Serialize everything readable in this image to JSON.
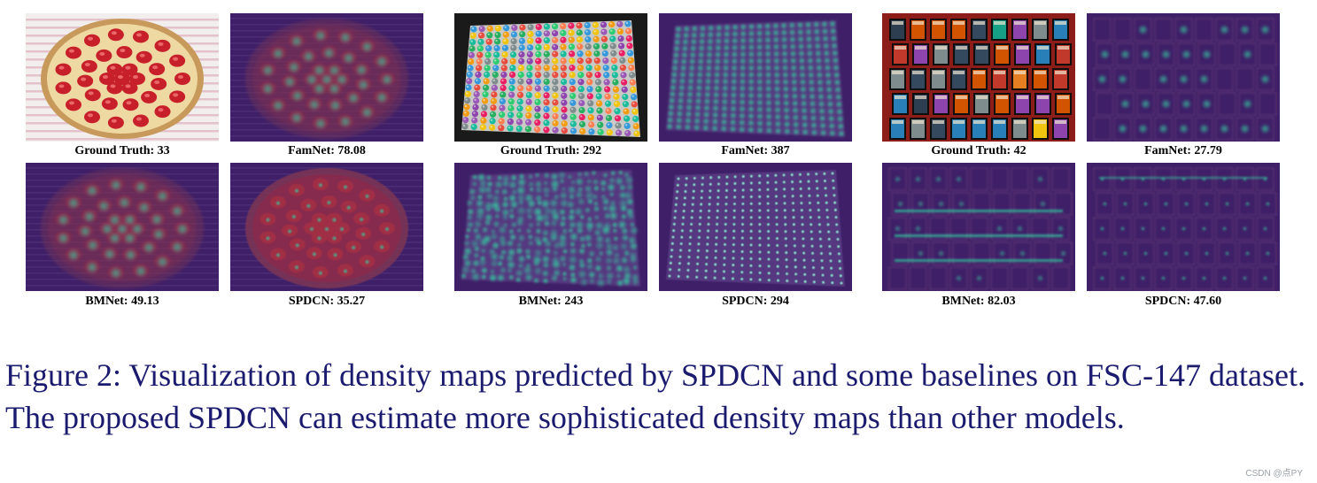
{
  "figure": {
    "groups": [
      {
        "subject": "strawberry tart",
        "panels": [
          {
            "label": "Ground Truth: 33",
            "kind": "photo-tart"
          },
          {
            "label": "FamNet: 78.08",
            "kind": "density-tart-blur"
          },
          {
            "label": "BMNet: 49.13",
            "kind": "density-tart-medium"
          },
          {
            "label": "SPDCN: 35.27",
            "kind": "density-tart-sharp"
          }
        ]
      },
      {
        "subject": "marker tray",
        "panels": [
          {
            "label": "Ground Truth: 292",
            "kind": "photo-markers"
          },
          {
            "label": "FamNet: 387",
            "kind": "density-markers-grid"
          },
          {
            "label": "BMNet: 243",
            "kind": "density-markers-noisy"
          },
          {
            "label": "SPDCN: 294",
            "kind": "density-markers-points"
          }
        ]
      },
      {
        "subject": "comic books",
        "panels": [
          {
            "label": "Ground Truth: 42",
            "kind": "photo-comics"
          },
          {
            "label": "FamNet: 27.79",
            "kind": "density-comics-sparse"
          },
          {
            "label": "BMNet: 82.03",
            "kind": "density-comics-lines"
          },
          {
            "label": "SPDCN: 47.60",
            "kind": "density-comics-points"
          }
        ]
      }
    ],
    "caption": "Figure 2: Visualization of density maps predicted by SPDCN and some baselines on FSC-147 dataset. The proposed SPDCN can estimate more sophisticated density maps than other models.",
    "watermark": "CSDN @点PY"
  },
  "colors": {
    "caption_text": "#1a1a6e",
    "density_background": "#3f2068",
    "density_peak": "#35c7a0",
    "tart_red": "#c8202a"
  }
}
